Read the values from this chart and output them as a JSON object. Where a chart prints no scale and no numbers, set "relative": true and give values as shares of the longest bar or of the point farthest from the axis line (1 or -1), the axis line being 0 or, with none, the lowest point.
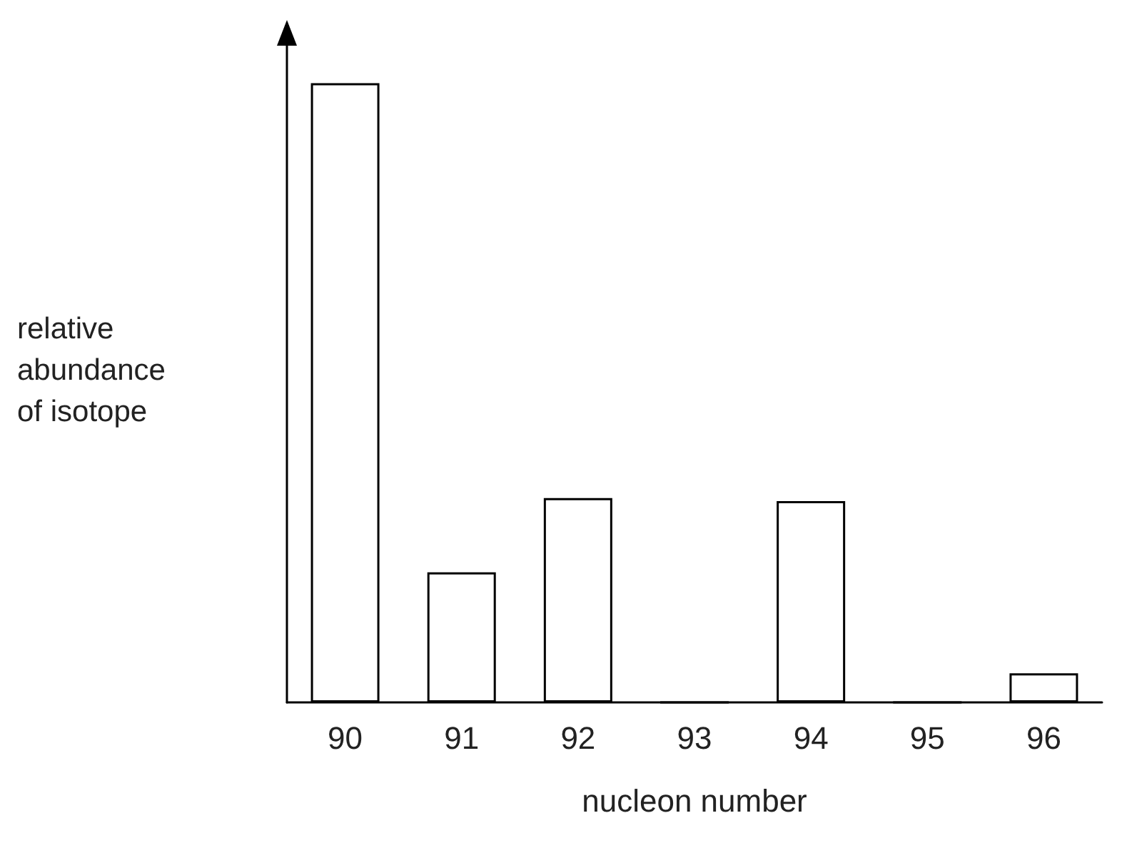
{
  "chart_data": {
    "type": "bar",
    "relative": true,
    "categories": [
      "90",
      "91",
      "92",
      "93",
      "94",
      "95",
      "96"
    ],
    "values": [
      1,
      0.21,
      0.33,
      0,
      0.325,
      0,
      0.047
    ],
    "color": "#ffffff",
    "xlabel": "nucleon number",
    "ylabel": "relative abundance of isotope",
    "grid": false
  }
}
